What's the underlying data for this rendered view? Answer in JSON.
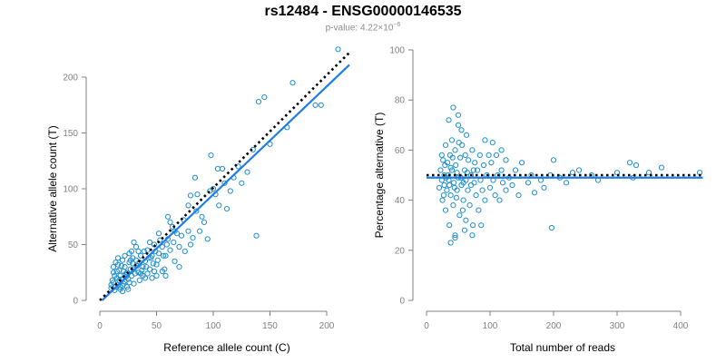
{
  "title": "rs12484 - ENSG00000146535",
  "subtitle": {
    "prefix": "p-value: 4.22×10",
    "exponent": "−6"
  },
  "colors": {
    "points": "#1f8fcf",
    "fit_line": "#1f7ee6",
    "reference_line": "#000000",
    "axis": "#808080"
  },
  "chart_data": [
    {
      "type": "scatter",
      "xlabel": "Reference allele count (C)",
      "ylabel": "Alternative allele count (T)",
      "xlim": [
        0,
        220
      ],
      "ylim": [
        0,
        220
      ],
      "xticks": [
        0,
        50,
        100,
        150,
        200
      ],
      "yticks": [
        0,
        50,
        100,
        150,
        200
      ],
      "reference_line": {
        "style": "dotted",
        "x": [
          0,
          220
        ],
        "y": [
          0,
          222
        ]
      },
      "fit_line": {
        "style": "solid",
        "x": [
          2,
          220
        ],
        "y": [
          0,
          211
        ]
      },
      "points": [
        [
          10,
          11
        ],
        [
          12,
          16
        ],
        [
          14,
          12
        ],
        [
          15,
          20
        ],
        [
          16,
          14
        ],
        [
          18,
          22
        ],
        [
          17,
          27
        ],
        [
          20,
          13
        ],
        [
          22,
          17
        ],
        [
          22,
          30
        ],
        [
          24,
          25
        ],
        [
          25,
          19
        ],
        [
          26,
          34
        ],
        [
          28,
          22
        ],
        [
          30,
          28
        ],
        [
          32,
          36
        ],
        [
          30,
          15
        ],
        [
          34,
          25
        ],
        [
          36,
          40
        ],
        [
          38,
          30
        ],
        [
          40,
          20
        ],
        [
          40,
          35
        ],
        [
          42,
          45
        ],
        [
          44,
          28
        ],
        [
          45,
          38
        ],
        [
          48,
          50
        ],
        [
          50,
          32
        ],
        [
          52,
          42
        ],
        [
          55,
          48
        ],
        [
          57,
          28
        ],
        [
          60,
          55
        ],
        [
          62,
          45
        ],
        [
          65,
          52
        ],
        [
          66,
          35
        ],
        [
          68,
          60
        ],
        [
          70,
          48
        ],
        [
          72,
          58
        ],
        [
          75,
          44
        ],
        [
          78,
          62
        ],
        [
          80,
          50
        ],
        [
          12,
          30
        ],
        [
          14,
          34
        ],
        [
          16,
          38
        ],
        [
          18,
          10
        ],
        [
          20,
          8
        ],
        [
          24,
          12
        ],
        [
          26,
          16
        ],
        [
          28,
          44
        ],
        [
          30,
          52
        ],
        [
          32,
          48
        ],
        [
          35,
          18
        ],
        [
          38,
          22
        ],
        [
          42,
          24
        ],
        [
          46,
          20
        ],
        [
          50,
          22
        ],
        [
          55,
          26
        ],
        [
          58,
          40
        ],
        [
          62,
          70
        ],
        [
          64,
          66
        ],
        [
          70,
          30
        ],
        [
          25,
          10
        ],
        [
          27,
          28
        ],
        [
          29,
          33
        ],
        [
          31,
          24
        ],
        [
          33,
          31
        ],
        [
          19,
          19
        ],
        [
          21,
          26
        ],
        [
          23,
          21
        ],
        [
          27,
          36
        ],
        [
          35,
          34
        ],
        [
          15,
          26
        ],
        [
          17,
          18
        ],
        [
          19,
          31
        ],
        [
          21,
          15
        ],
        [
          23,
          24
        ],
        [
          13,
          22
        ],
        [
          11,
          18
        ],
        [
          12,
          25
        ],
        [
          16,
          32
        ],
        [
          20,
          36
        ],
        [
          37,
          27
        ],
        [
          39,
          44
        ],
        [
          41,
          30
        ],
        [
          43,
          38
        ],
        [
          47,
          33
        ],
        [
          49,
          44
        ],
        [
          51,
          36
        ],
        [
          53,
          54
        ],
        [
          56,
          40
        ],
        [
          59,
          50
        ],
        [
          10,
          14
        ],
        [
          13,
          9
        ],
        [
          18,
          12
        ],
        [
          22,
          40
        ],
        [
          26,
          42
        ],
        [
          29,
          38
        ],
        [
          34,
          44
        ],
        [
          36,
          24
        ],
        [
          44,
          52
        ],
        [
          48,
          26
        ],
        [
          82,
          56
        ],
        [
          85,
          80
        ],
        [
          88,
          62
        ],
        [
          90,
          75
        ],
        [
          92,
          70
        ],
        [
          95,
          55
        ],
        [
          97,
          98
        ],
        [
          100,
          100
        ],
        [
          102,
          95
        ],
        [
          105,
          85
        ],
        [
          108,
          118
        ],
        [
          112,
          82
        ],
        [
          118,
          110
        ],
        [
          122,
          120
        ],
        [
          125,
          105
        ],
        [
          130,
          115
        ],
        [
          135,
          135
        ],
        [
          138,
          58
        ],
        [
          140,
          178
        ],
        [
          145,
          182
        ],
        [
          150,
          140
        ],
        [
          165,
          155
        ],
        [
          170,
          195
        ],
        [
          190,
          175
        ],
        [
          195,
          175
        ],
        [
          210,
          225
        ],
        [
          60,
          75
        ],
        [
          66,
          62
        ],
        [
          74,
          72
        ],
        [
          78,
          85
        ],
        [
          84,
          110
        ],
        [
          86,
          95
        ],
        [
          80,
          94
        ],
        [
          98,
          130
        ],
        [
          104,
          118
        ],
        [
          110,
          105
        ],
        [
          115,
          98
        ],
        [
          58,
          22
        ],
        [
          52,
          60
        ],
        [
          46,
          40
        ]
      ]
    },
    {
      "type": "scatter",
      "xlabel": "Total number of reads",
      "ylabel": "Percentage alternative (T)",
      "xlim": [
        0,
        435
      ],
      "ylim": [
        0,
        100
      ],
      "xticks": [
        0,
        100,
        200,
        300,
        400
      ],
      "yticks": [
        0,
        20,
        40,
        60,
        80,
        100
      ],
      "reference_line": {
        "style": "dotted",
        "y": 50
      },
      "fit_line": {
        "style": "solid",
        "y": 49
      },
      "points": [
        [
          20,
          45
        ],
        [
          22,
          52
        ],
        [
          24,
          48
        ],
        [
          25,
          40
        ],
        [
          26,
          56
        ],
        [
          28,
          50
        ],
        [
          30,
          62
        ],
        [
          30,
          36
        ],
        [
          32,
          44
        ],
        [
          33,
          55
        ],
        [
          35,
          48
        ],
        [
          36,
          30
        ],
        [
          37,
          58
        ],
        [
          38,
          42
        ],
        [
          40,
          52
        ],
        [
          40,
          64
        ],
        [
          42,
          38
        ],
        [
          43,
          47
        ],
        [
          45,
          60
        ],
        [
          45,
          26
        ],
        [
          46,
          54
        ],
        [
          48,
          44
        ],
        [
          50,
          49
        ],
        [
          50,
          70
        ],
        [
          52,
          34
        ],
        [
          53,
          57
        ],
        [
          55,
          46
        ],
        [
          56,
          62
        ],
        [
          58,
          40
        ],
        [
          60,
          52
        ],
        [
          60,
          28
        ],
        [
          62,
          48
        ],
        [
          63,
          66
        ],
        [
          65,
          44
        ],
        [
          66,
          56
        ],
        [
          68,
          38
        ],
        [
          70,
          50
        ],
        [
          72,
          60
        ],
        [
          73,
          30
        ],
        [
          75,
          47
        ],
        [
          76,
          55
        ],
        [
          78,
          42
        ],
        [
          80,
          52
        ],
        [
          82,
          36
        ],
        [
          84,
          58
        ],
        [
          85,
          48
        ],
        [
          88,
          44
        ],
        [
          90,
          54
        ],
        [
          92,
          40
        ],
        [
          95,
          50
        ],
        [
          28,
          46
        ],
        [
          34,
          50
        ],
        [
          38,
          53
        ],
        [
          44,
          45
        ],
        [
          48,
          51
        ],
        [
          54,
          49
        ],
        [
          58,
          47
        ],
        [
          64,
          51
        ],
        [
          70,
          46
        ],
        [
          74,
          52
        ],
        [
          24,
          58
        ],
        [
          27,
          42
        ],
        [
          29,
          54
        ],
        [
          31,
          49
        ],
        [
          36,
          46
        ],
        [
          41,
          57
        ],
        [
          47,
          41
        ],
        [
          51,
          63
        ],
        [
          57,
          36
        ],
        [
          61,
          58
        ],
        [
          100,
          45
        ],
        [
          102,
          55
        ],
        [
          105,
          48
        ],
        [
          108,
          42
        ],
        [
          110,
          58
        ],
        [
          112,
          50
        ],
        [
          115,
          40
        ],
        [
          118,
          52
        ],
        [
          120,
          47
        ],
        [
          125,
          44
        ],
        [
          130,
          49
        ],
        [
          135,
          46
        ],
        [
          140,
          52
        ],
        [
          145,
          42
        ],
        [
          150,
          55
        ],
        [
          160,
          47
        ],
        [
          165,
          50
        ],
        [
          170,
          43
        ],
        [
          180,
          48
        ],
        [
          185,
          45
        ],
        [
          195,
          50
        ],
        [
          197,
          29
        ],
        [
          200,
          56
        ],
        [
          210,
          49
        ],
        [
          220,
          47
        ],
        [
          230,
          51
        ],
        [
          240,
          52
        ],
        [
          260,
          50
        ],
        [
          270,
          48
        ],
        [
          300,
          51
        ],
        [
          320,
          55
        ],
        [
          325,
          49
        ],
        [
          330,
          54
        ],
        [
          350,
          51
        ],
        [
          370,
          53
        ],
        [
          430,
          51
        ],
        [
          35,
          72
        ],
        [
          42,
          77
        ],
        [
          50,
          74
        ],
        [
          55,
          68
        ],
        [
          38,
          23
        ],
        [
          45,
          25
        ],
        [
          62,
          32
        ],
        [
          72,
          26
        ],
        [
          86,
          30
        ],
        [
          92,
          64
        ],
        [
          98,
          58
        ],
        [
          104,
          63
        ],
        [
          118,
          60
        ],
        [
          125,
          56
        ]
      ]
    }
  ]
}
